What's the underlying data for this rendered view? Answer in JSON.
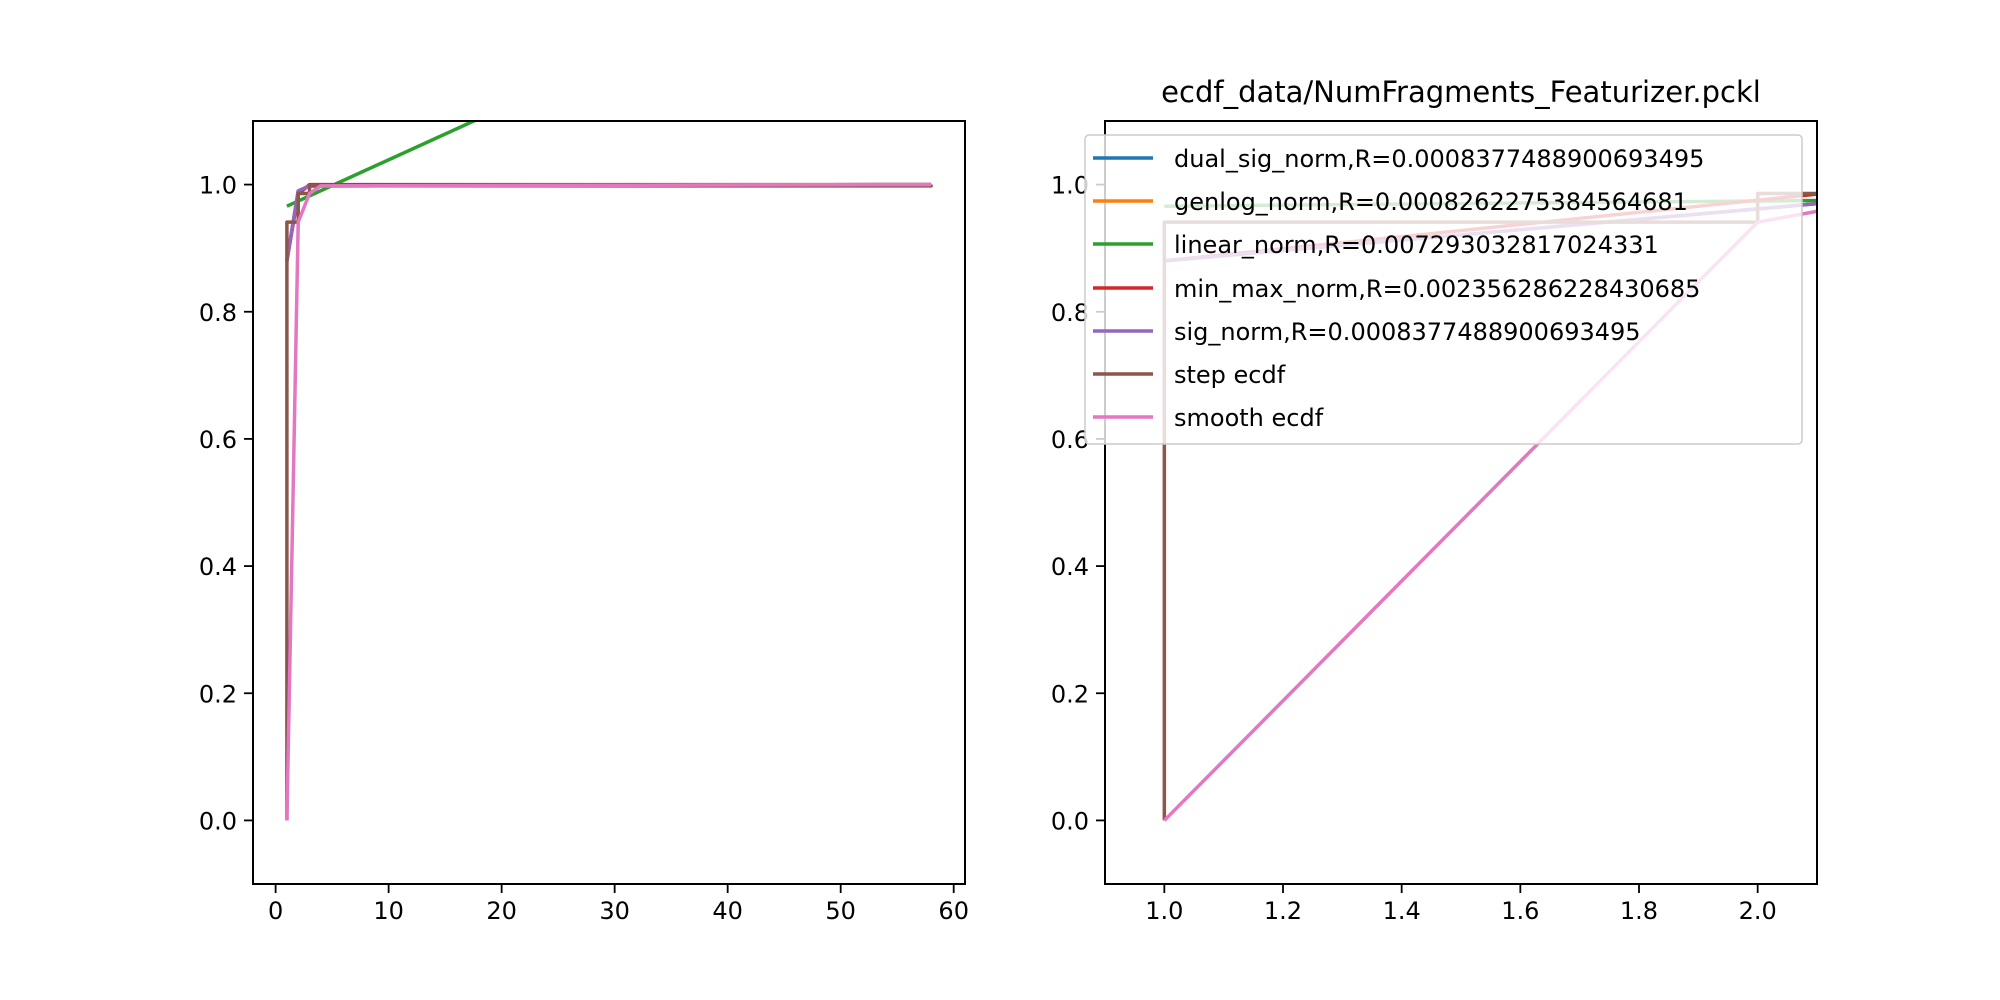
{
  "chart_data": [
    {
      "type": "line",
      "title": "",
      "xlabel": "",
      "ylabel": "",
      "xlim": [
        -2,
        61
      ],
      "ylim": [
        -0.1,
        1.1
      ],
      "xticks": [
        0,
        10,
        20,
        30,
        40,
        50,
        60
      ],
      "yticks": [
        0.0,
        0.2,
        0.4,
        0.6,
        0.8,
        1.0
      ],
      "xtick_labels": [
        "0",
        "10",
        "20",
        "30",
        "40",
        "50",
        "60"
      ],
      "ytick_labels": [
        "0.0",
        "0.2",
        "0.4",
        "0.6",
        "0.8",
        "1.0"
      ],
      "grid": false,
      "series": [
        {
          "key": "dual_sig_norm",
          "color": "#1f77b4",
          "points": [
            [
              1,
              0.88
            ],
            [
              2,
              0.99
            ],
            [
              3,
              0.998
            ],
            [
              58,
              1.0
            ]
          ]
        },
        {
          "key": "genlog_norm",
          "color": "#ff7f0e",
          "points": [
            [
              1,
              0.88
            ],
            [
              2,
              0.99
            ],
            [
              3,
              0.998
            ],
            [
              58,
              1.0
            ]
          ]
        },
        {
          "key": "linear_norm",
          "color": "#2ca02c",
          "points": [
            [
              1,
              0.966
            ],
            [
              20,
              1.12
            ]
          ]
        },
        {
          "key": "min_max_norm",
          "color": "#d62728",
          "points": [
            [
              1,
              0.88
            ],
            [
              2,
              0.985
            ],
            [
              3,
              1.0
            ],
            [
              58,
              1.0
            ]
          ]
        },
        {
          "key": "sig_norm",
          "color": "#9467bd",
          "points": [
            [
              1,
              0.88
            ],
            [
              2,
              0.99
            ],
            [
              3,
              0.998
            ],
            [
              58,
              1.0
            ]
          ]
        },
        {
          "key": "step_ecdf",
          "color": "#8c564b",
          "points": [
            [
              1,
              0.0
            ],
            [
              1,
              0.941
            ],
            [
              2,
              0.941
            ],
            [
              2,
              0.986
            ],
            [
              3,
              0.986
            ],
            [
              3,
              0.998
            ],
            [
              58,
              0.998
            ],
            [
              58,
              1.0
            ]
          ]
        },
        {
          "key": "smooth_ecdf",
          "color": "#e377c2",
          "points": [
            [
              1,
              0.0
            ],
            [
              2,
              0.941
            ],
            [
              3,
              0.986
            ],
            [
              4,
              0.998
            ],
            [
              58,
              1.0
            ]
          ]
        }
      ]
    },
    {
      "type": "line",
      "title": "ecdf_data/NumFragments_Featurizer.pckl",
      "xlabel": "",
      "ylabel": "",
      "xlim": [
        0.9,
        2.1
      ],
      "ylim": [
        -0.1,
        1.1
      ],
      "xticks": [
        1.0,
        1.2,
        1.4,
        1.6,
        1.8,
        2.0
      ],
      "yticks": [
        0.0,
        0.2,
        0.4,
        0.6,
        0.8,
        1.0
      ],
      "xtick_labels": [
        "1.0",
        "1.2",
        "1.4",
        "1.6",
        "1.8",
        "2.0"
      ],
      "ytick_labels": [
        "0.0",
        "0.2",
        "0.4",
        "0.6",
        "0.8",
        "1.0"
      ],
      "grid": false,
      "legend_position": "top-right",
      "series": [
        {
          "key": "dual_sig_norm",
          "name": "dual_sig_norm,R=0.0008377488900693495",
          "color": "#1f77b4",
          "points": [
            [
              1.0,
              0.88
            ],
            [
              2.1,
              0.97
            ]
          ]
        },
        {
          "key": "genlog_norm",
          "name": "genlog_norm,R=0.0008262275384564681",
          "color": "#ff7f0e",
          "points": [
            [
              1.0,
              0.88
            ],
            [
              2.1,
              0.97
            ]
          ]
        },
        {
          "key": "linear_norm",
          "name": "linear_norm,R=0.007293032817024331",
          "color": "#2ca02c",
          "points": [
            [
              1.0,
              0.966
            ],
            [
              2.1,
              0.975
            ]
          ]
        },
        {
          "key": "min_max_norm",
          "name": "min_max_norm,R=0.002356286228430685",
          "color": "#d62728",
          "points": [
            [
              1.0,
              0.88
            ],
            [
              2.1,
              0.985
            ]
          ]
        },
        {
          "key": "sig_norm",
          "name": "sig_norm,R=0.0008377488900693495",
          "color": "#9467bd",
          "points": [
            [
              1.0,
              0.88
            ],
            [
              2.1,
              0.97
            ]
          ]
        },
        {
          "key": "step_ecdf",
          "name": "step ecdf",
          "color": "#8c564b",
          "points": [
            [
              1.0,
              0.0
            ],
            [
              1.0,
              0.941
            ],
            [
              2.0,
              0.941
            ],
            [
              2.0,
              0.986
            ],
            [
              2.1,
              0.986
            ]
          ]
        },
        {
          "key": "smooth_ecdf",
          "name": "smooth ecdf",
          "color": "#e377c2",
          "points": [
            [
              1.0,
              0.0
            ],
            [
              2.0,
              0.941
            ],
            [
              2.1,
              0.958
            ]
          ]
        }
      ]
    }
  ]
}
